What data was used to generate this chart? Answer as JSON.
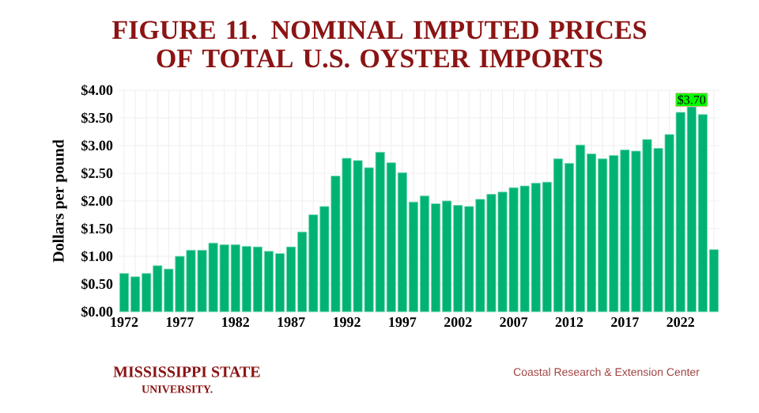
{
  "chart_data": {
    "type": "bar",
    "title": "FIGURE 11. NOMINAL IMPUTED PRICES OF TOTAL U.S. OYSTER IMPORTS",
    "ylabel": "Dollars per pound",
    "x": [
      1972,
      1973,
      1974,
      1975,
      1976,
      1977,
      1978,
      1979,
      1980,
      1981,
      1982,
      1983,
      1984,
      1985,
      1986,
      1987,
      1988,
      1989,
      1990,
      1991,
      1992,
      1993,
      1994,
      1995,
      1996,
      1997,
      1998,
      1999,
      2000,
      2001,
      2002,
      2003,
      2004,
      2005,
      2006,
      2007,
      2008,
      2009,
      2010,
      2011,
      2012,
      2013,
      2014,
      2015,
      2016,
      2017,
      2018,
      2019,
      2020,
      2021,
      2022,
      2023,
      2024,
      2025
    ],
    "values": [
      0.69,
      0.63,
      0.69,
      0.83,
      0.77,
      1.0,
      1.11,
      1.11,
      1.24,
      1.21,
      1.21,
      1.18,
      1.17,
      1.09,
      1.05,
      1.17,
      1.44,
      1.75,
      1.9,
      2.45,
      2.77,
      2.73,
      2.6,
      2.88,
      2.69,
      2.51,
      1.98,
      2.09,
      1.95,
      2.0,
      1.92,
      1.9,
      2.03,
      2.12,
      2.16,
      2.24,
      2.27,
      2.32,
      2.34,
      2.76,
      2.68,
      3.01,
      2.85,
      2.76,
      2.82,
      2.92,
      2.9,
      3.11,
      2.95,
      3.2,
      3.6,
      3.7,
      3.56,
      1.12
    ],
    "value_labels": [
      null,
      null,
      null,
      null,
      null,
      null,
      null,
      null,
      null,
      null,
      null,
      null,
      null,
      null,
      null,
      null,
      null,
      null,
      null,
      null,
      null,
      null,
      null,
      null,
      null,
      null,
      null,
      null,
      null,
      null,
      null,
      null,
      null,
      null,
      null,
      null,
      null,
      null,
      null,
      null,
      null,
      null,
      null,
      null,
      null,
      null,
      null,
      null,
      null,
      null,
      null,
      "$3.70",
      null,
      null
    ],
    "color": "#00b373",
    "xlim": [
      1971.5,
      2025.5
    ],
    "xticks": [
      1972,
      1977,
      1982,
      1987,
      1992,
      1997,
      2002,
      2007,
      2012,
      2017,
      2022
    ],
    "ylim": [
      0,
      4
    ],
    "yticks": [
      {
        "value": 0,
        "label": "$0.00"
      },
      {
        "value": 0.5,
        "label": "$0.50"
      },
      {
        "value": 1,
        "label": "$1.00"
      },
      {
        "value": 1.5,
        "label": "$1.50"
      },
      {
        "value": 2,
        "label": "$2.00"
      },
      {
        "value": 2.5,
        "label": "$2.50"
      },
      {
        "value": 3,
        "label": "$3.00"
      },
      {
        "value": 3.5,
        "label": "$3.50"
      },
      {
        "value": 4,
        "label": "$4.00"
      }
    ],
    "grid": true,
    "annotations": [
      "MISSISSIPPI STATE",
      "UNIVERSITY.",
      "Coastal Research & Extension Center"
    ]
  }
}
